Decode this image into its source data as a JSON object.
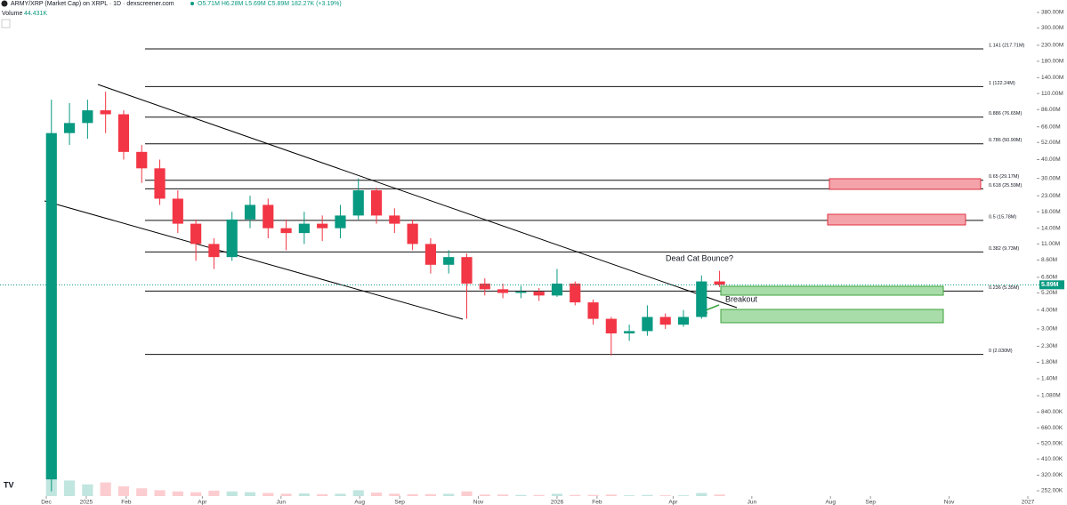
{
  "chart_data": {
    "type": "candlestick",
    "title": "ARMY/XRP (Market Cap) on XRPL · 1D · dexscreener.com",
    "ohlc_text": "O5.71M H6.28M L5.69M C5.89M 182.27K (+3.19%)",
    "volume_label": "Volume",
    "volume_last": "44.431K",
    "log_scale": true,
    "up_color": "#089981",
    "down_color": "#f23645",
    "x": [
      "2024-11-28",
      "2024-12-12",
      "2024-12-26",
      "2025-01-09",
      "2025-01-23",
      "2025-02-06",
      "2025-02-20",
      "2025-03-06",
      "2025-03-20",
      "2025-04-03",
      "2025-04-17",
      "2025-05-01",
      "2025-05-15",
      "2025-05-29",
      "2025-06-12",
      "2025-06-26",
      "2025-07-10",
      "2025-07-24",
      "2025-08-07",
      "2025-08-21",
      "2025-09-04",
      "2025-09-18",
      "2025-10-02",
      "2025-10-16",
      "2025-10-30",
      "2025-11-13",
      "2025-11-27",
      "2025-12-11",
      "2025-12-25",
      "2026-01-08",
      "2026-01-22",
      "2026-02-05",
      "2026-02-19",
      "2026-03-05",
      "2026-03-19",
      "2026-04-02",
      "2026-04-16",
      "2026-04-30"
    ],
    "open": [
      300000.0,
      60000000.0,
      70000000.0,
      85000000.0,
      80000000.0,
      45000000.0,
      35000000.0,
      22000000.0,
      15000000.0,
      11000000.0,
      9000000.0,
      16000000.0,
      20000000.0,
      14000000.0,
      13000000.0,
      15000000.0,
      14000000.0,
      17000000.0,
      25000000.0,
      17000000.0,
      15000000.0,
      11000000.0,
      8000000.0,
      9000000.0,
      6000000.0,
      5500000.0,
      5200000.0,
      5300000.0,
      5000000.0,
      6000000.0,
      4500000.0,
      3500000.0,
      2800000.0,
      2900000.0,
      3600000.0,
      3200000.0,
      3600000.0,
      6200000.0
    ],
    "high": [
      100000000.0,
      95000000.0,
      100000000.0,
      113000000.0,
      85000000.0,
      50000000.0,
      40000000.0,
      25000000.0,
      16000000.0,
      12000000.0,
      18000000.0,
      23000000.0,
      22000000.0,
      16000000.0,
      18000000.0,
      17000000.0,
      20000000.0,
      30000000.0,
      26000000.0,
      19000000.0,
      16000000.0,
      12000000.0,
      10000000.0,
      9500000.0,
      6500000.0,
      6000000.0,
      5800000.0,
      5600000.0,
      7500000.0,
      6200000.0,
      4700000.0,
      3600000.0,
      3200000.0,
      4300000.0,
      3800000.0,
      4000000.0,
      6800000.0,
      7300000.0
    ],
    "low": [
      250000.0,
      50000000.0,
      55000000.0,
      60000000.0,
      40000000.0,
      28000000.0,
      20000000.0,
      13000000.0,
      8500000.0,
      7500000.0,
      8500000.0,
      14000000.0,
      12000000.0,
      10000000.0,
      11000000.0,
      11500000.0,
      12000000.0,
      16000000.0,
      15000000.0,
      13000000.0,
      10000000.0,
      7000000.0,
      7000000.0,
      3500000.0,
      5000000.0,
      4800000.0,
      4800000.0,
      4600000.0,
      4900000.0,
      4300000.0,
      3200000.0,
      2000000.0,
      2500000.0,
      2700000.0,
      3000000.0,
      3100000.0,
      3500000.0,
      5700000.0
    ],
    "close": [
      60000000.0,
      70000000.0,
      85000000.0,
      80000000.0,
      45000000.0,
      35000000.0,
      22000000.0,
      15000000.0,
      11000000.0,
      9000000.0,
      16000000.0,
      20000000.0,
      14000000.0,
      13000000.0,
      15000000.0,
      14000000.0,
      17000000.0,
      25000000.0,
      17000000.0,
      15000000.0,
      11000000.0,
      8000000.0,
      9000000.0,
      6000000.0,
      5500000.0,
      5200000.0,
      5300000.0,
      5000000.0,
      6000000.0,
      4500000.0,
      3500000.0,
      2800000.0,
      2900000.0,
      3600000.0,
      3200000.0,
      3600000.0,
      6200000.0,
      5890000.0
    ],
    "volume": [
      1800000.0,
      400000.0,
      300000.0,
      350000.0,
      250000.0,
      200000.0,
      150000.0,
      120000.0,
      100000.0,
      140000.0,
      120000.0,
      100000.0,
      80000.0,
      60000.0,
      70000.0,
      50000.0,
      60000.0,
      150000.0,
      90000.0,
      60000.0,
      50000.0,
      50000.0,
      60000.0,
      120000.0,
      40000.0,
      40000.0,
      30000.0,
      30000.0,
      60000.0,
      30000.0,
      30000.0,
      40000.0,
      20000.0,
      30000.0,
      20000.0,
      20000.0,
      80000.0,
      40000.0
    ],
    "volume_ylim": [
      0,
      2000000.0
    ],
    "last_price": {
      "value": 5890000,
      "label": "5.89M"
    },
    "ylim": [
      252000,
      380000000
    ],
    "yticks": [
      {
        "value": 380000000,
        "label": "380.00M"
      },
      {
        "value": 300000000,
        "label": "300.00M"
      },
      {
        "value": 230000000,
        "label": "230.00M"
      },
      {
        "value": 180000000,
        "label": "180.00M"
      },
      {
        "value": 140000000,
        "label": "140.00M"
      },
      {
        "value": 110000000,
        "label": "110.00M"
      },
      {
        "value": 86000000,
        "label": "86.00M"
      },
      {
        "value": 66000000,
        "label": "66.00M"
      },
      {
        "value": 52000000,
        "label": "52.00M"
      },
      {
        "value": 40000000,
        "label": "40.00M"
      },
      {
        "value": 30000000,
        "label": "30.00M"
      },
      {
        "value": 23000000,
        "label": "23.00M"
      },
      {
        "value": 18000000,
        "label": "18.00M"
      },
      {
        "value": 14000000,
        "label": "14.00M"
      },
      {
        "value": 11000000,
        "label": "11.00M"
      },
      {
        "value": 8600000,
        "label": "8.60M"
      },
      {
        "value": 6600000,
        "label": "6.60M"
      },
      {
        "value": 5200000,
        "label": "5.20M"
      },
      {
        "value": 4000000,
        "label": "4.00M"
      },
      {
        "value": 3000000,
        "label": "3.00M"
      },
      {
        "value": 2300000,
        "label": "2.30M"
      },
      {
        "value": 1800000,
        "label": "1.80M"
      },
      {
        "value": 1400000,
        "label": "1.40M"
      },
      {
        "value": 1080000,
        "label": "1.080M"
      },
      {
        "value": 840000,
        "label": "840.00K"
      },
      {
        "value": 660000,
        "label": "660.00K"
      },
      {
        "value": 520000,
        "label": "520.00K"
      },
      {
        "value": 410000,
        "label": "410.00K"
      },
      {
        "value": 320000,
        "label": "320.00K"
      },
      {
        "value": 252000,
        "label": "252.00K"
      }
    ],
    "xlim": [
      "2024-11",
      "2027-01"
    ],
    "xticks": [
      {
        "value": "2024-12",
        "label": "Dec"
      },
      {
        "value": "2025-01",
        "label": "2025"
      },
      {
        "value": "2025-02",
        "label": "Feb"
      },
      {
        "value": "2025-04",
        "label": "Apr"
      },
      {
        "value": "2025-06",
        "label": "Jun"
      },
      {
        "value": "2025-08",
        "label": "Aug"
      },
      {
        "value": "2025-09",
        "label": "Sep"
      },
      {
        "value": "2025-11",
        "label": "Nov"
      },
      {
        "value": "2026-01",
        "label": "2026"
      },
      {
        "value": "2026-02",
        "label": "Feb"
      },
      {
        "value": "2026-04",
        "label": "Apr"
      },
      {
        "value": "2026-06",
        "label": "Jun"
      },
      {
        "value": "2026-08",
        "label": "Aug"
      },
      {
        "value": "2026-09",
        "label": "Sep"
      },
      {
        "value": "2026-11",
        "label": "Nov"
      },
      {
        "value": "2027-01",
        "label": "2027"
      }
    ],
    "fib_levels": [
      {
        "value": 217710000,
        "label": "1.141 (217.71M)"
      },
      {
        "value": 122240000,
        "label": "1 (122.24M)"
      },
      {
        "value": 76650000,
        "label": "0.886 (76.65M)"
      },
      {
        "value": 50900000,
        "label": "0.786 (50.90M)"
      },
      {
        "value": 29170000,
        "label": "0.65 (29.17M)"
      },
      {
        "value": 25590000,
        "label": "0.618 (25.59M)"
      },
      {
        "value": 15780000,
        "label": "0.5 (15.78M)"
      },
      {
        "value": 9730000,
        "label": "0.382 (9.73M)"
      },
      {
        "value": 5350000,
        "label": "0.236 (5.35M)"
      },
      {
        "value": 2030000,
        "label": "0 (2.030M)"
      }
    ],
    "annotations": [
      "Dead Cat Bounce?",
      "Breakout"
    ]
  }
}
